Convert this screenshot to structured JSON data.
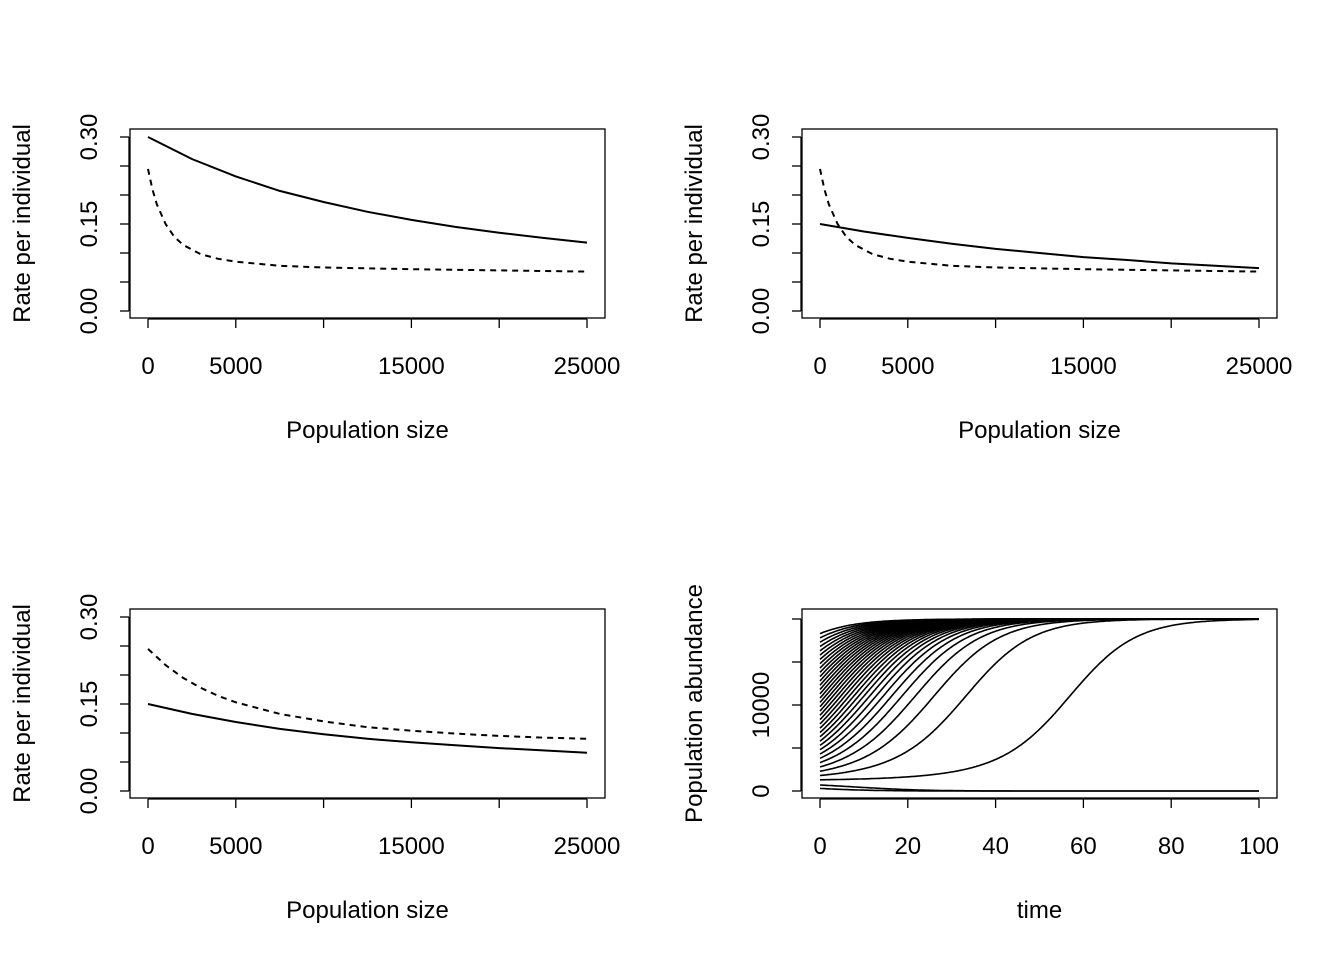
{
  "chart_data": [
    {
      "type": "line",
      "xlabel": "Population size",
      "ylabel": "Rate per individual",
      "xlim": [
        0,
        25000
      ],
      "ylim": [
        0,
        0.3
      ],
      "xticks": [
        0,
        5000,
        10000,
        15000,
        20000,
        25000
      ],
      "xtick_labels": [
        "0",
        "5000",
        "",
        "15000",
        "",
        "25000"
      ],
      "yticks": [
        0,
        0.05,
        0.1,
        0.15,
        0.2,
        0.25,
        0.3
      ],
      "ytick_labels": [
        "0.00",
        "",
        "",
        "0.15",
        "",
        "",
        "0.30"
      ],
      "grid": false,
      "series": [
        {
          "style": "solid",
          "x": [
            0,
            2500,
            5000,
            7500,
            10000,
            12500,
            15000,
            17500,
            20000,
            22500,
            25000
          ],
          "values": [
            0.3,
            0.262,
            0.232,
            0.207,
            0.188,
            0.171,
            0.157,
            0.145,
            0.135,
            0.126,
            0.118
          ]
        },
        {
          "style": "dashed",
          "x": [
            0,
            250,
            500,
            1000,
            1500,
            2000,
            3000,
            4000,
            5000,
            7500,
            10000,
            15000,
            20000,
            25000
          ],
          "values": [
            0.245,
            0.21,
            0.184,
            0.15,
            0.128,
            0.114,
            0.098,
            0.09,
            0.085,
            0.078,
            0.075,
            0.072,
            0.07,
            0.068
          ]
        }
      ]
    },
    {
      "type": "line",
      "xlabel": "Population size",
      "ylabel": "Rate per individual",
      "xlim": [
        0,
        25000
      ],
      "ylim": [
        0,
        0.3
      ],
      "xticks": [
        0,
        5000,
        10000,
        15000,
        20000,
        25000
      ],
      "xtick_labels": [
        "0",
        "5000",
        "",
        "15000",
        "",
        "25000"
      ],
      "yticks": [
        0,
        0.05,
        0.1,
        0.15,
        0.2,
        0.25,
        0.3
      ],
      "ytick_labels": [
        "0.00",
        "",
        "",
        "0.15",
        "",
        "",
        "0.30"
      ],
      "grid": false,
      "series": [
        {
          "style": "solid",
          "x": [
            0,
            2500,
            5000,
            7500,
            10000,
            12500,
            15000,
            17500,
            20000,
            22500,
            25000
          ],
          "values": [
            0.15,
            0.137,
            0.126,
            0.116,
            0.107,
            0.1,
            0.093,
            0.088,
            0.082,
            0.078,
            0.074
          ]
        },
        {
          "style": "dashed",
          "x": [
            0,
            250,
            500,
            1000,
            1500,
            2000,
            3000,
            4000,
            5000,
            7500,
            10000,
            15000,
            20000,
            25000
          ],
          "values": [
            0.245,
            0.21,
            0.184,
            0.15,
            0.128,
            0.114,
            0.098,
            0.09,
            0.085,
            0.078,
            0.075,
            0.072,
            0.07,
            0.068
          ]
        }
      ]
    },
    {
      "type": "line",
      "xlabel": "Population size",
      "ylabel": "Rate per individual",
      "xlim": [
        0,
        25000
      ],
      "ylim": [
        0,
        0.3
      ],
      "xticks": [
        0,
        5000,
        10000,
        15000,
        20000,
        25000
      ],
      "xtick_labels": [
        "0",
        "5000",
        "",
        "15000",
        "",
        "25000"
      ],
      "yticks": [
        0,
        0.05,
        0.1,
        0.15,
        0.2,
        0.25,
        0.3
      ],
      "ytick_labels": [
        "0.00",
        "",
        "",
        "0.15",
        "",
        "",
        "0.30"
      ],
      "grid": false,
      "series": [
        {
          "style": "solid",
          "x": [
            0,
            2500,
            5000,
            7500,
            10000,
            12500,
            15000,
            17500,
            20000,
            22500,
            25000
          ],
          "values": [
            0.15,
            0.133,
            0.119,
            0.107,
            0.098,
            0.09,
            0.084,
            0.079,
            0.074,
            0.07,
            0.066
          ]
        },
        {
          "style": "dashed",
          "x": [
            0,
            1000,
            2000,
            3000,
            4000,
            5000,
            7500,
            10000,
            12500,
            15000,
            17500,
            20000,
            22500,
            25000
          ],
          "values": [
            0.245,
            0.217,
            0.195,
            0.178,
            0.164,
            0.153,
            0.133,
            0.12,
            0.11,
            0.104,
            0.099,
            0.095,
            0.092,
            0.09
          ]
        }
      ]
    },
    {
      "type": "line",
      "xlabel": "time",
      "ylabel": "Population abundance",
      "xlim": [
        0,
        100
      ],
      "ylim": [
        0,
        20000
      ],
      "xticks": [
        0,
        20,
        40,
        60,
        80,
        100
      ],
      "xtick_labels": [
        "0",
        "20",
        "40",
        "60",
        "80",
        "100"
      ],
      "yticks": [
        0,
        5000,
        10000,
        15000,
        20000
      ],
      "ytick_labels": [
        "0",
        "",
        "10000",
        "",
        ""
      ],
      "grid": false,
      "trajectory_model": {
        "carrying_capacity": 20000,
        "threshold": 1200,
        "rate": 0.075
      },
      "initial_abundances": [
        300,
        700,
        1300,
        1800,
        2300,
        2800,
        3300,
        3800,
        4300,
        4800,
        5300,
        5800,
        6300,
        6800,
        7300,
        7800,
        8300,
        8800,
        9300,
        9800,
        10300,
        10800,
        11300,
        11800,
        12300,
        12800,
        13300,
        13800,
        14300,
        14800,
        15300,
        15800,
        16300,
        16800,
        17300,
        17800,
        18300
      ]
    }
  ]
}
